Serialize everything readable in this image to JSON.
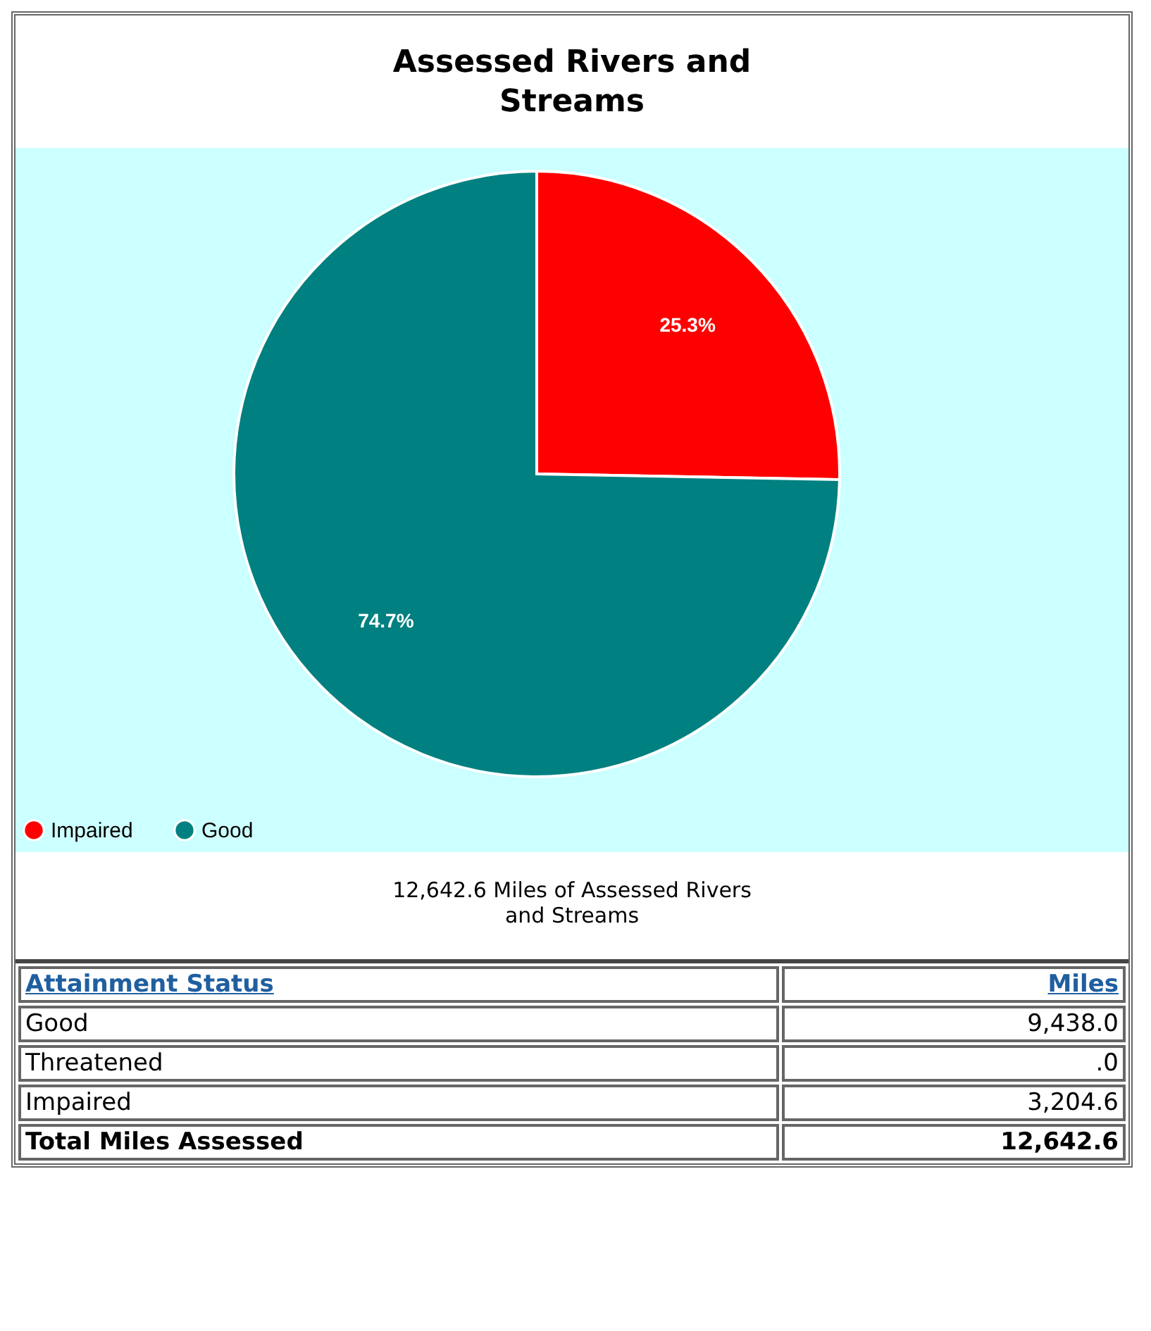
{
  "chart_data": {
    "type": "pie",
    "title": "Assessed Rivers and Streams",
    "categories": [
      "Impaired",
      "Good"
    ],
    "values": [
      25.3,
      74.7
    ],
    "colors": [
      "#ff0000",
      "#008080"
    ],
    "value_labels": [
      "25.3%",
      "74.7%"
    ],
    "legend": "bottom",
    "annotations": [
      "12,642.6 Miles of Assessed Rivers and Streams",
      "Attainment Status",
      "Miles",
      "Good",
      "9,438.0",
      "Threatened",
      ".0",
      "Impaired",
      "3,204.6",
      "Total Miles Assessed",
      "12,642.6"
    ]
  }
}
